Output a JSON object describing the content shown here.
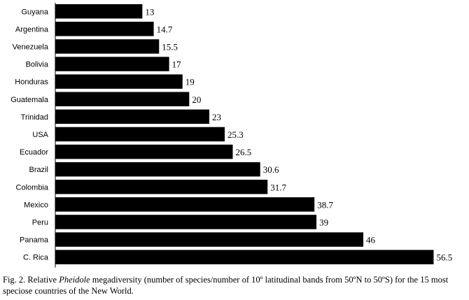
{
  "chart_data": {
    "type": "bar",
    "orientation": "horizontal",
    "categories": [
      "Guyana",
      "Argentina",
      "Venezuela",
      "Bolivia",
      "Honduras",
      "Guatemala",
      "Trinidad",
      "USA",
      "Ecuador",
      "Brazil",
      "Colombia",
      "Mexico",
      "Peru",
      "Panama",
      "C. Rica"
    ],
    "values": [
      13,
      14.7,
      15.5,
      17,
      19,
      20,
      23,
      25.3,
      26.5,
      30.6,
      31.7,
      38.7,
      39,
      46,
      56.5
    ],
    "value_labels": [
      "13",
      "14.7",
      "15.5",
      "17",
      "19",
      "20",
      "23",
      "25.3",
      "26.5",
      "30.6",
      "31.7",
      "38.7",
      "39",
      "46",
      "56.5"
    ],
    "xlim": [
      0,
      57.6
    ],
    "title": "",
    "xlabel": "",
    "ylabel": "",
    "grid": false,
    "bar_color": "#000000"
  },
  "caption": {
    "prefix": "Fig. 2. Relative ",
    "genus": "Pheidole",
    "suffix": " megadiversity (number of species/number of 10º latitudinal bands from 50ºN to 50ºS) for the 15 most speciose countries of the New World."
  }
}
